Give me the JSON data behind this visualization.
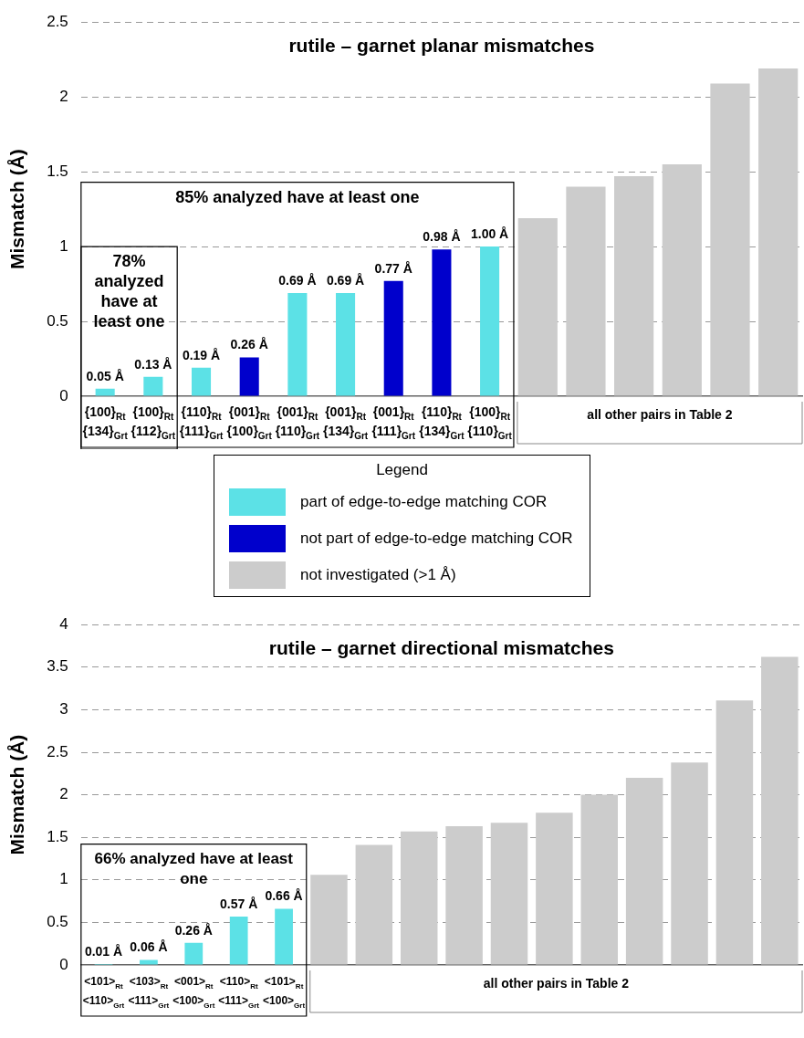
{
  "chart_data": [
    {
      "type": "bar",
      "title": "rutile – garnet planar mismatches",
      "ylabel": "Mismatch (Å)",
      "legend_title": "Legend",
      "legend": "bottom",
      "grid": "y",
      "categories": [
        "{100}$_{Rt}$\n{134}$_{Grt}$",
        "{100}$_{Rt}$\n{112}$_{Grt}$",
        "{110}$_{Rt}$\n{111}$_{Grt}$",
        "{001}$_{Rt}$\n{100}$_{Grt}$",
        "{001}$_{Rt}$\n{110}$_{Grt}$",
        "{001}$_{Rt}$\n{134}$_{Grt}$",
        "{001}$_{Rt}$\n{111}$_{Grt}$",
        "{110}$_{Rt}$\n{134}$_{Grt}$",
        "{100}$_{Rt}$\n{110}$_{Grt}$",
        null,
        null,
        null,
        null,
        null,
        null
      ],
      "series": [
        {
          "name": "part of edge-to-edge matching COR",
          "color": "#5ce1e6",
          "values": [
            0.05,
            0.13,
            0.19,
            null,
            0.69,
            0.69,
            null,
            null,
            1.0,
            null,
            null,
            null,
            null,
            null,
            null
          ],
          "value_labels": [
            "0.05 Å",
            "0.13 Å",
            "0.19 Å",
            null,
            "0.69 Å",
            "0.69 Å",
            null,
            null,
            "1.00 Å",
            null,
            null,
            null,
            null,
            null,
            null
          ]
        },
        {
          "name": "not part of edge-to-edge matching COR",
          "color": "#0000cc",
          "values": [
            null,
            null,
            null,
            0.26,
            null,
            null,
            0.77,
            0.98,
            null,
            null,
            null,
            null,
            null,
            null,
            null
          ],
          "value_labels": [
            null,
            null,
            null,
            "0.26 Å",
            null,
            null,
            "0.77 Å",
            "0.98 Å",
            null,
            null,
            null,
            null,
            null,
            null,
            null
          ]
        },
        {
          "name": "not investigated (>1 Å)",
          "color": "#cccccc",
          "values": [
            null,
            null,
            null,
            null,
            null,
            null,
            null,
            null,
            null,
            1.19,
            1.4,
            1.47,
            1.55,
            2.09,
            2.19
          ]
        }
      ],
      "ylim": [
        0,
        2.5
      ],
      "yticks": [
        0,
        0.5,
        1,
        1.5,
        2,
        2.5
      ],
      "annotations": [
        "85% analyzed have at least one",
        "78% analyzed have at least one",
        "all other pairs in Table 2"
      ]
    },
    {
      "type": "bar",
      "title": "rutile – garnet directional mismatches",
      "ylabel": "Mismatch (Å)",
      "grid": "y",
      "categories": [
        "<101>$_{Rt}$\n<110>$_{Grt}$",
        "<103>$_{Rt}$\n<111>$_{Grt}$",
        "<001>$_{Rt}$\n<100>$_{Grt}$",
        "<110>$_{Rt}$\n<111>$_{Grt}$",
        "<101>$_{Rt}$\n<100>$_{Grt}$",
        null,
        null,
        null,
        null,
        null,
        null,
        null,
        null,
        null,
        null,
        null
      ],
      "series": [
        {
          "color": "#5ce1e6",
          "values": [
            0.01,
            0.06,
            0.26,
            0.57,
            0.66,
            null,
            null,
            null,
            null,
            null,
            null,
            null,
            null,
            null,
            null,
            null
          ],
          "value_labels": [
            "0.01 Å",
            "0.06 Å",
            "0.26 Å",
            "0.57 Å",
            "0.66 Å",
            null,
            null,
            null,
            null,
            null,
            null,
            null,
            null,
            null,
            null,
            null
          ]
        },
        {
          "color": "#cccccc",
          "values": [
            null,
            null,
            null,
            null,
            null,
            1.06,
            1.41,
            1.57,
            1.63,
            1.67,
            1.79,
            2.0,
            2.2,
            2.38,
            3.11,
            3.62
          ]
        }
      ],
      "ylim": [
        0,
        4
      ],
      "yticks": [
        0,
        0.5,
        1,
        1.5,
        2,
        2.5,
        3,
        3.5,
        4
      ],
      "annotations": [
        "66% analyzed have at least one",
        "all other pairs in Table 2"
      ]
    }
  ]
}
